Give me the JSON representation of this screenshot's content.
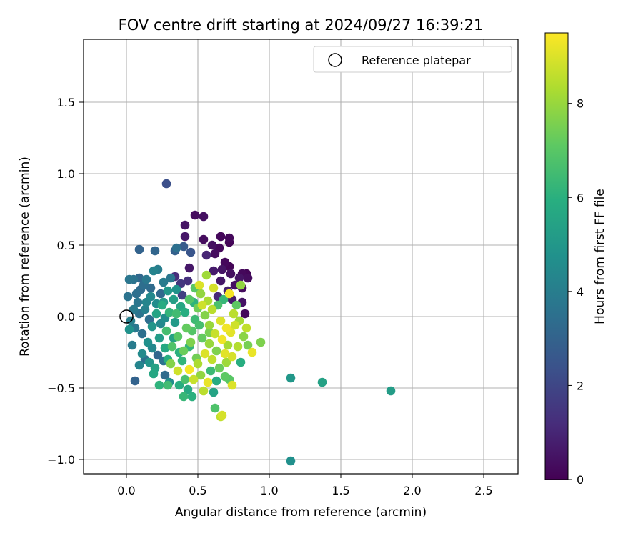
{
  "chart_data": {
    "type": "scatter",
    "title": "FOV centre drift starting at 2024/09/27 16:39:21",
    "xlabel": "Angular distance from reference (arcmin)",
    "ylabel": "Rotation from reference (arcmin)",
    "xlim": [
      -0.3,
      2.74
    ],
    "ylim": [
      -1.1,
      1.94
    ],
    "xticks": [
      0.0,
      0.5,
      1.0,
      1.5,
      2.0,
      2.5
    ],
    "xtick_labels": [
      "0.0",
      "0.5",
      "1.0",
      "1.5",
      "2.0",
      "2.5"
    ],
    "yticks": [
      -1.0,
      -0.5,
      0.0,
      0.5,
      1.0,
      1.5
    ],
    "ytick_labels": [
      "−1.0",
      "−0.5",
      "0.0",
      "0.5",
      "1.0",
      "1.5"
    ],
    "grid": true,
    "legend": {
      "position": "top-right",
      "entries": [
        "Reference platepar"
      ]
    },
    "reference_point": {
      "x": 0.0,
      "y": 0.0
    },
    "colorbar": {
      "label": "Hours from first FF file",
      "colormap": "viridis",
      "range": [
        0,
        9.5
      ],
      "ticks": [
        0,
        2,
        4,
        6,
        8
      ],
      "tick_labels": [
        "0",
        "2",
        "4",
        "6",
        "8"
      ]
    },
    "points": [
      {
        "x": 0.28,
        "y": 0.93,
        "h": 2.3
      },
      {
        "x": 0.48,
        "y": 0.71,
        "h": 0.3
      },
      {
        "x": 0.54,
        "y": 0.7,
        "h": 0.4
      },
      {
        "x": 0.41,
        "y": 0.64,
        "h": 0.5
      },
      {
        "x": 0.66,
        "y": 0.56,
        "h": 0.2
      },
      {
        "x": 0.41,
        "y": 0.56,
        "h": 0.6
      },
      {
        "x": 0.54,
        "y": 0.54,
        "h": 0.3
      },
      {
        "x": 0.72,
        "y": 0.55,
        "h": 0.2
      },
      {
        "x": 0.72,
        "y": 0.52,
        "h": 0.1
      },
      {
        "x": 0.6,
        "y": 0.5,
        "h": 0.4
      },
      {
        "x": 0.65,
        "y": 0.48,
        "h": 0.2
      },
      {
        "x": 0.62,
        "y": 0.44,
        "h": 0.3
      },
      {
        "x": 0.56,
        "y": 0.43,
        "h": 1.0
      },
      {
        "x": 0.69,
        "y": 0.38,
        "h": 0.2
      },
      {
        "x": 0.72,
        "y": 0.35,
        "h": 0.1
      },
      {
        "x": 0.67,
        "y": 0.33,
        "h": 0.5
      },
      {
        "x": 0.61,
        "y": 0.32,
        "h": 0.7
      },
      {
        "x": 0.44,
        "y": 0.34,
        "h": 0.6
      },
      {
        "x": 0.73,
        "y": 0.3,
        "h": 0.4
      },
      {
        "x": 0.81,
        "y": 0.3,
        "h": 0.2
      },
      {
        "x": 0.84,
        "y": 0.3,
        "h": 0.1
      },
      {
        "x": 0.85,
        "y": 0.27,
        "h": 0.3
      },
      {
        "x": 0.79,
        "y": 0.27,
        "h": 0.5
      },
      {
        "x": 0.76,
        "y": 0.22,
        "h": 0.4
      },
      {
        "x": 0.66,
        "y": 0.25,
        "h": 0.6
      },
      {
        "x": 0.81,
        "y": 0.2,
        "h": 0.3
      },
      {
        "x": 0.71,
        "y": 0.18,
        "h": 0.8
      },
      {
        "x": 0.64,
        "y": 0.14,
        "h": 1.1
      },
      {
        "x": 0.74,
        "y": 0.12,
        "h": 0.7
      },
      {
        "x": 0.81,
        "y": 0.1,
        "h": 0.5
      },
      {
        "x": 0.83,
        "y": 0.02,
        "h": 0.2
      },
      {
        "x": 0.34,
        "y": 0.28,
        "h": 1.2
      },
      {
        "x": 0.38,
        "y": 0.23,
        "h": 1.5
      },
      {
        "x": 0.43,
        "y": 0.25,
        "h": 1.3
      },
      {
        "x": 0.39,
        "y": 0.15,
        "h": 1.8
      },
      {
        "x": 0.09,
        "y": 0.47,
        "h": 3.0
      },
      {
        "x": 0.2,
        "y": 0.46,
        "h": 3.1
      },
      {
        "x": 0.35,
        "y": 0.48,
        "h": 3.5
      },
      {
        "x": 0.34,
        "y": 0.46,
        "h": 2.9
      },
      {
        "x": 0.4,
        "y": 0.49,
        "h": 2.7
      },
      {
        "x": 0.45,
        "y": 0.45,
        "h": 2.5
      },
      {
        "x": 0.05,
        "y": 0.26,
        "h": 3.6
      },
      {
        "x": 0.09,
        "y": 0.27,
        "h": 3.2
      },
      {
        "x": 0.14,
        "y": 0.26,
        "h": 3.8
      },
      {
        "x": 0.19,
        "y": 0.32,
        "h": 4.2
      },
      {
        "x": 0.22,
        "y": 0.33,
        "h": 4.0
      },
      {
        "x": 0.26,
        "y": 0.24,
        "h": 3.9
      },
      {
        "x": 0.31,
        "y": 0.27,
        "h": 3.7
      },
      {
        "x": 0.12,
        "y": 0.22,
        "h": 3.4
      },
      {
        "x": 0.17,
        "y": 0.2,
        "h": 3.3
      },
      {
        "x": 0.24,
        "y": 0.16,
        "h": 3.2
      },
      {
        "x": 0.07,
        "y": 0.16,
        "h": 3.5
      },
      {
        "x": 0.02,
        "y": 0.26,
        "h": 3.7
      },
      {
        "x": 0.14,
        "y": 0.1,
        "h": 4.3
      },
      {
        "x": 0.21,
        "y": 0.09,
        "h": 4.6
      },
      {
        "x": 0.05,
        "y": 0.05,
        "h": 3.9
      },
      {
        "x": 0.09,
        "y": 0.02,
        "h": 3.6
      },
      {
        "x": 0.16,
        "y": -0.02,
        "h": 3.4
      },
      {
        "x": 0.03,
        "y": -0.03,
        "h": 4.1
      },
      {
        "x": 0.06,
        "y": -0.08,
        "h": 3.8
      },
      {
        "x": 0.11,
        "y": -0.12,
        "h": 3.5
      },
      {
        "x": 0.02,
        "y": -0.09,
        "h": 4.8
      },
      {
        "x": 0.04,
        "y": -0.2,
        "h": 3.9
      },
      {
        "x": 0.13,
        "y": -0.3,
        "h": 3.5
      },
      {
        "x": 0.18,
        "y": -0.22,
        "h": 4.4
      },
      {
        "x": 0.22,
        "y": -0.27,
        "h": 3.1
      },
      {
        "x": 0.26,
        "y": -0.31,
        "h": 3.6
      },
      {
        "x": 0.06,
        "y": -0.45,
        "h": 3.0
      },
      {
        "x": 0.27,
        "y": -0.41,
        "h": 3.3
      },
      {
        "x": 0.3,
        "y": -0.46,
        "h": 4.6
      },
      {
        "x": 0.19,
        "y": -0.4,
        "h": 5.6
      },
      {
        "x": 0.23,
        "y": -0.48,
        "h": 6.1
      },
      {
        "x": 0.29,
        "y": -0.48,
        "h": 6.5
      },
      {
        "x": 0.37,
        "y": -0.48,
        "h": 5.9
      },
      {
        "x": 0.4,
        "y": -0.56,
        "h": 6.3
      },
      {
        "x": 0.46,
        "y": -0.56,
        "h": 6.0
      },
      {
        "x": 0.43,
        "y": -0.51,
        "h": 5.7
      },
      {
        "x": 0.61,
        "y": -0.53,
        "h": 5.5
      },
      {
        "x": 0.62,
        "y": -0.64,
        "h": 6.8
      },
      {
        "x": 0.66,
        "y": -0.7,
        "h": 8.6
      },
      {
        "x": 0.67,
        "y": -0.69,
        "h": 8.9
      },
      {
        "x": 1.15,
        "y": -0.43,
        "h": 5.0
      },
      {
        "x": 1.37,
        "y": -0.46,
        "h": 5.4
      },
      {
        "x": 1.85,
        "y": -0.52,
        "h": 5.2
      },
      {
        "x": 1.15,
        "y": -1.01,
        "h": 4.7
      },
      {
        "x": 0.25,
        "y": 0.08,
        "h": 5.8
      },
      {
        "x": 0.3,
        "y": 0.03,
        "h": 6.2
      },
      {
        "x": 0.34,
        "y": -0.04,
        "h": 5.1
      },
      {
        "x": 0.28,
        "y": -0.1,
        "h": 6.6
      },
      {
        "x": 0.36,
        "y": -0.14,
        "h": 7.0
      },
      {
        "x": 0.32,
        "y": -0.21,
        "h": 6.8
      },
      {
        "x": 0.4,
        "y": -0.24,
        "h": 7.3
      },
      {
        "x": 0.45,
        "y": -0.18,
        "h": 7.6
      },
      {
        "x": 0.42,
        "y": -0.08,
        "h": 7.2
      },
      {
        "x": 0.48,
        "y": -0.02,
        "h": 6.4
      },
      {
        "x": 0.5,
        "y": 0.06,
        "h": 7.4
      },
      {
        "x": 0.44,
        "y": 0.12,
        "h": 6.9
      },
      {
        "x": 0.52,
        "y": 0.16,
        "h": 7.9
      },
      {
        "x": 0.57,
        "y": 0.11,
        "h": 8.3
      },
      {
        "x": 0.6,
        "y": 0.05,
        "h": 8.5
      },
      {
        "x": 0.55,
        "y": 0.01,
        "h": 7.7
      },
      {
        "x": 0.58,
        "y": -0.06,
        "h": 8.0
      },
      {
        "x": 0.62,
        "y": -0.12,
        "h": 8.7
      },
      {
        "x": 0.66,
        "y": -0.03,
        "h": 9.0
      },
      {
        "x": 0.7,
        "y": -0.08,
        "h": 9.3
      },
      {
        "x": 0.73,
        "y": -0.11,
        "h": 9.1
      },
      {
        "x": 0.76,
        "y": -0.06,
        "h": 8.8
      },
      {
        "x": 0.79,
        "y": -0.03,
        "h": 8.2
      },
      {
        "x": 0.82,
        "y": -0.14,
        "h": 7.8
      },
      {
        "x": 0.85,
        "y": -0.2,
        "h": 7.5
      },
      {
        "x": 0.88,
        "y": -0.25,
        "h": 9.2
      },
      {
        "x": 0.94,
        "y": -0.18,
        "h": 7.6
      },
      {
        "x": 0.78,
        "y": -0.21,
        "h": 8.4
      },
      {
        "x": 0.74,
        "y": -0.28,
        "h": 8.9
      },
      {
        "x": 0.7,
        "y": -0.32,
        "h": 8.1
      },
      {
        "x": 0.65,
        "y": -0.36,
        "h": 7.3
      },
      {
        "x": 0.6,
        "y": -0.3,
        "h": 8.6
      },
      {
        "x": 0.55,
        "y": -0.26,
        "h": 9.0
      },
      {
        "x": 0.5,
        "y": -0.33,
        "h": 8.3
      },
      {
        "x": 0.52,
        "y": -0.41,
        "h": 7.9
      },
      {
        "x": 0.47,
        "y": -0.44,
        "h": 8.7
      },
      {
        "x": 0.57,
        "y": -0.46,
        "h": 9.2
      },
      {
        "x": 0.54,
        "y": -0.52,
        "h": 8.5
      },
      {
        "x": 0.69,
        "y": -0.42,
        "h": 7.1
      },
      {
        "x": 0.72,
        "y": -0.44,
        "h": 7.0
      },
      {
        "x": 0.74,
        "y": -0.48,
        "h": 9.0
      },
      {
        "x": 0.8,
        "y": -0.32,
        "h": 5.9
      },
      {
        "x": 0.36,
        "y": -0.38,
        "h": 8.8
      },
      {
        "x": 0.31,
        "y": -0.33,
        "h": 7.7
      },
      {
        "x": 0.39,
        "y": -0.31,
        "h": 6.2
      },
      {
        "x": 0.44,
        "y": -0.37,
        "h": 9.4
      },
      {
        "x": 0.49,
        "y": -0.29,
        "h": 7.4
      },
      {
        "x": 0.58,
        "y": -0.19,
        "h": 8.0
      },
      {
        "x": 0.63,
        "y": -0.24,
        "h": 7.6
      },
      {
        "x": 0.67,
        "y": -0.16,
        "h": 9.3
      },
      {
        "x": 0.71,
        "y": -0.2,
        "h": 8.2
      },
      {
        "x": 0.64,
        "y": 0.08,
        "h": 6.7
      },
      {
        "x": 0.68,
        "y": 0.12,
        "h": 6.3
      },
      {
        "x": 0.72,
        "y": 0.16,
        "h": 9.4
      },
      {
        "x": 0.77,
        "y": 0.08,
        "h": 7.1
      },
      {
        "x": 0.8,
        "y": 0.22,
        "h": 7.9
      },
      {
        "x": 0.56,
        "y": 0.29,
        "h": 8.1
      },
      {
        "x": 0.51,
        "y": 0.22,
        "h": 9.0
      },
      {
        "x": 0.47,
        "y": 0.1,
        "h": 6.1
      },
      {
        "x": 0.38,
        "y": 0.07,
        "h": 5.6
      },
      {
        "x": 0.33,
        "y": 0.12,
        "h": 5.3
      },
      {
        "x": 0.29,
        "y": 0.18,
        "h": 5.0
      },
      {
        "x": 0.21,
        "y": 0.02,
        "h": 5.5
      },
      {
        "x": 0.18,
        "y": -0.07,
        "h": 4.9
      },
      {
        "x": 0.23,
        "y": -0.15,
        "h": 5.2
      },
      {
        "x": 0.27,
        "y": -0.22,
        "h": 5.7
      },
      {
        "x": 0.15,
        "y": -0.18,
        "h": 4.7
      },
      {
        "x": 0.11,
        "y": -0.26,
        "h": 4.5
      },
      {
        "x": 0.09,
        "y": -0.34,
        "h": 4.3
      },
      {
        "x": 0.16,
        "y": -0.32,
        "h": 4.9
      },
      {
        "x": 0.2,
        "y": -0.36,
        "h": 5.4
      },
      {
        "x": 0.24,
        "y": -0.05,
        "h": 4.4
      },
      {
        "x": 0.13,
        "y": 0.05,
        "h": 4.1
      },
      {
        "x": 0.08,
        "y": 0.1,
        "h": 3.7
      },
      {
        "x": 0.17,
        "y": 0.14,
        "h": 4.4
      },
      {
        "x": 0.26,
        "y": 0.1,
        "h": 5.2
      },
      {
        "x": 0.35,
        "y": 0.19,
        "h": 4.8
      },
      {
        "x": 0.41,
        "y": 0.03,
        "h": 5.9
      },
      {
        "x": 0.46,
        "y": -0.1,
        "h": 6.9
      },
      {
        "x": 0.51,
        "y": -0.06,
        "h": 6.6
      },
      {
        "x": 0.53,
        "y": -0.15,
        "h": 7.2
      },
      {
        "x": 0.59,
        "y": -0.38,
        "h": 6.4
      },
      {
        "x": 0.63,
        "y": -0.45,
        "h": 5.8
      },
      {
        "x": 0.41,
        "y": -0.44,
        "h": 6.7
      },
      {
        "x": 0.37,
        "y": -0.25,
        "h": 6.0
      },
      {
        "x": 0.33,
        "y": -0.15,
        "h": 5.4
      },
      {
        "x": 0.29,
        "y": -0.3,
        "h": 5.9
      },
      {
        "x": 0.61,
        "y": 0.2,
        "h": 8.9
      },
      {
        "x": 0.75,
        "y": 0.02,
        "h": 8.5
      },
      {
        "x": 0.84,
        "y": -0.08,
        "h": 8.6
      },
      {
        "x": 0.44,
        "y": -0.21,
        "h": 6.2
      },
      {
        "x": 0.48,
        "y": 0.2,
        "h": 7.0
      },
      {
        "x": 0.53,
        "y": 0.08,
        "h": 8.8
      },
      {
        "x": 0.69,
        "y": -0.26,
        "h": 9.1
      },
      {
        "x": 0.58,
        "y": -0.11,
        "h": 7.5
      },
      {
        "x": 0.35,
        "y": 0.02,
        "h": 6.5
      },
      {
        "x": 0.27,
        "y": -0.01,
        "h": 4.6
      },
      {
        "x": 0.1,
        "y": 0.19,
        "h": 3.3
      },
      {
        "x": 0.01,
        "y": 0.14,
        "h": 3.6
      }
    ]
  }
}
